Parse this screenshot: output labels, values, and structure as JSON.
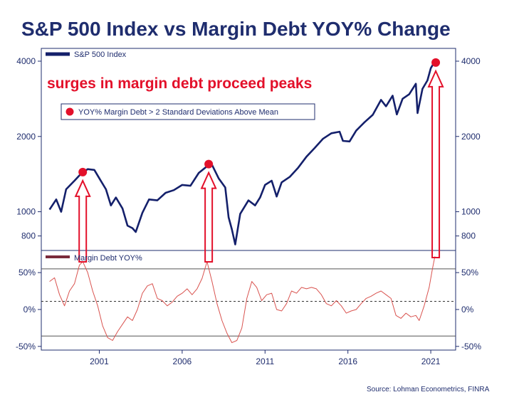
{
  "chart_data": {
    "type": "line",
    "title": "S&P 500 Index vs Margin Debt YOY% Change",
    "annotation": "surges in margin debt proceed peaks",
    "source": "Source: Lohman Econometrics, FINRA",
    "x_range": [
      1997.5,
      2022.5
    ],
    "x_ticks": [
      {
        "value": 2001,
        "label": "2001"
      },
      {
        "value": 2006,
        "label": "2006"
      },
      {
        "value": 2011,
        "label": "2011"
      },
      {
        "value": 2016,
        "label": "2016"
      },
      {
        "value": 2021,
        "label": "2021"
      }
    ],
    "top_panel": {
      "scale": "log",
      "y_range": [
        700,
        4500
      ],
      "y_ticks": [
        {
          "value": 800,
          "label": "800"
        },
        {
          "value": 1000,
          "label": "1000"
        },
        {
          "value": 2000,
          "label": "2000"
        },
        {
          "value": 4000,
          "label": "4000"
        }
      ],
      "series_name": "S&P 500 Index",
      "series_color": "#14206b",
      "points": [
        [
          1998.0,
          1020
        ],
        [
          1998.4,
          1120
        ],
        [
          1998.7,
          1000
        ],
        [
          1999.0,
          1230
        ],
        [
          1999.5,
          1330
        ],
        [
          1999.9,
          1420
        ],
        [
          2000.3,
          1480
        ],
        [
          2000.7,
          1470
        ],
        [
          2001.0,
          1360
        ],
        [
          2001.4,
          1230
        ],
        [
          2001.7,
          1060
        ],
        [
          2002.0,
          1140
        ],
        [
          2002.4,
          1030
        ],
        [
          2002.7,
          880
        ],
        [
          2003.0,
          860
        ],
        [
          2003.2,
          830
        ],
        [
          2003.6,
          990
        ],
        [
          2004.0,
          1120
        ],
        [
          2004.5,
          1110
        ],
        [
          2005.0,
          1190
        ],
        [
          2005.5,
          1220
        ],
        [
          2006.0,
          1280
        ],
        [
          2006.5,
          1270
        ],
        [
          2007.0,
          1430
        ],
        [
          2007.5,
          1520
        ],
        [
          2007.8,
          1540
        ],
        [
          2008.2,
          1360
        ],
        [
          2008.6,
          1250
        ],
        [
          2008.8,
          950
        ],
        [
          2009.0,
          850
        ],
        [
          2009.2,
          740
        ],
        [
          2009.5,
          980
        ],
        [
          2010.0,
          1110
        ],
        [
          2010.4,
          1060
        ],
        [
          2010.7,
          1140
        ],
        [
          2011.0,
          1280
        ],
        [
          2011.4,
          1330
        ],
        [
          2011.7,
          1150
        ],
        [
          2012.0,
          1310
        ],
        [
          2012.5,
          1380
        ],
        [
          2013.0,
          1500
        ],
        [
          2013.5,
          1660
        ],
        [
          2014.0,
          1800
        ],
        [
          2014.5,
          1960
        ],
        [
          2015.0,
          2060
        ],
        [
          2015.5,
          2090
        ],
        [
          2015.7,
          1920
        ],
        [
          2016.1,
          1910
        ],
        [
          2016.5,
          2110
        ],
        [
          2017.0,
          2280
        ],
        [
          2017.5,
          2440
        ],
        [
          2018.0,
          2800
        ],
        [
          2018.3,
          2640
        ],
        [
          2018.7,
          2910
        ],
        [
          2018.95,
          2450
        ],
        [
          2019.3,
          2830
        ],
        [
          2019.7,
          2950
        ],
        [
          2020.1,
          3250
        ],
        [
          2020.2,
          2480
        ],
        [
          2020.5,
          3100
        ],
        [
          2020.8,
          3350
        ],
        [
          2021.0,
          3750
        ],
        [
          2021.3,
          4050
        ]
      ],
      "red_dot_label": "YOY% Margin Debt > 2 Standard Deviations Above Mean",
      "red_dot_color": "#e3102a",
      "red_dots": [
        [
          2000.0,
          1440
        ],
        [
          2007.6,
          1550
        ],
        [
          2021.3,
          3950
        ]
      ]
    },
    "bottom_panel": {
      "y_range": [
        -55,
        80
      ],
      "y_ticks": [
        {
          "value": 50,
          "label": "50%"
        },
        {
          "value": 0,
          "label": "0%"
        },
        {
          "value": -50,
          "label": "-50%"
        }
      ],
      "series_name": "Margin Debt YOY%",
      "series_color": "#d9534f",
      "reference_lines": {
        "upper": 55,
        "mean": 11,
        "lower": -36
      },
      "points": [
        [
          1998.0,
          38
        ],
        [
          1998.3,
          43
        ],
        [
          1998.6,
          20
        ],
        [
          1998.9,
          5
        ],
        [
          1999.2,
          25
        ],
        [
          1999.5,
          35
        ],
        [
          1999.8,
          60
        ],
        [
          2000.0,
          65
        ],
        [
          2000.3,
          50
        ],
        [
          2000.6,
          25
        ],
        [
          2000.9,
          5
        ],
        [
          2001.2,
          -22
        ],
        [
          2001.5,
          -38
        ],
        [
          2001.8,
          -42
        ],
        [
          2002.1,
          -30
        ],
        [
          2002.4,
          -20
        ],
        [
          2002.7,
          -10
        ],
        [
          2003.0,
          -15
        ],
        [
          2003.3,
          0
        ],
        [
          2003.6,
          22
        ],
        [
          2003.9,
          32
        ],
        [
          2004.2,
          35
        ],
        [
          2004.5,
          15
        ],
        [
          2004.8,
          12
        ],
        [
          2005.1,
          5
        ],
        [
          2005.4,
          10
        ],
        [
          2005.7,
          18
        ],
        [
          2006.0,
          22
        ],
        [
          2006.3,
          28
        ],
        [
          2006.6,
          20
        ],
        [
          2006.9,
          28
        ],
        [
          2007.2,
          42
        ],
        [
          2007.5,
          65
        ],
        [
          2007.8,
          38
        ],
        [
          2008.1,
          8
        ],
        [
          2008.4,
          -15
        ],
        [
          2008.7,
          -32
        ],
        [
          2009.0,
          -45
        ],
        [
          2009.3,
          -42
        ],
        [
          2009.6,
          -25
        ],
        [
          2009.9,
          15
        ],
        [
          2010.2,
          38
        ],
        [
          2010.5,
          30
        ],
        [
          2010.8,
          12
        ],
        [
          2011.1,
          20
        ],
        [
          2011.4,
          22
        ],
        [
          2011.7,
          0
        ],
        [
          2012.0,
          -2
        ],
        [
          2012.3,
          8
        ],
        [
          2012.6,
          25
        ],
        [
          2012.9,
          22
        ],
        [
          2013.2,
          30
        ],
        [
          2013.5,
          28
        ],
        [
          2013.8,
          30
        ],
        [
          2014.1,
          28
        ],
        [
          2014.4,
          20
        ],
        [
          2014.7,
          8
        ],
        [
          2015.0,
          5
        ],
        [
          2015.3,
          12
        ],
        [
          2015.6,
          5
        ],
        [
          2015.9,
          -5
        ],
        [
          2016.2,
          -2
        ],
        [
          2016.5,
          0
        ],
        [
          2016.8,
          8
        ],
        [
          2017.1,
          15
        ],
        [
          2017.4,
          18
        ],
        [
          2017.7,
          22
        ],
        [
          2018.0,
          25
        ],
        [
          2018.3,
          20
        ],
        [
          2018.6,
          15
        ],
        [
          2018.9,
          -8
        ],
        [
          2019.2,
          -12
        ],
        [
          2019.5,
          -5
        ],
        [
          2019.8,
          -10
        ],
        [
          2020.1,
          -8
        ],
        [
          2020.3,
          -15
        ],
        [
          2020.6,
          5
        ],
        [
          2020.9,
          30
        ],
        [
          2021.1,
          55
        ],
        [
          2021.25,
          72
        ]
      ]
    }
  }
}
